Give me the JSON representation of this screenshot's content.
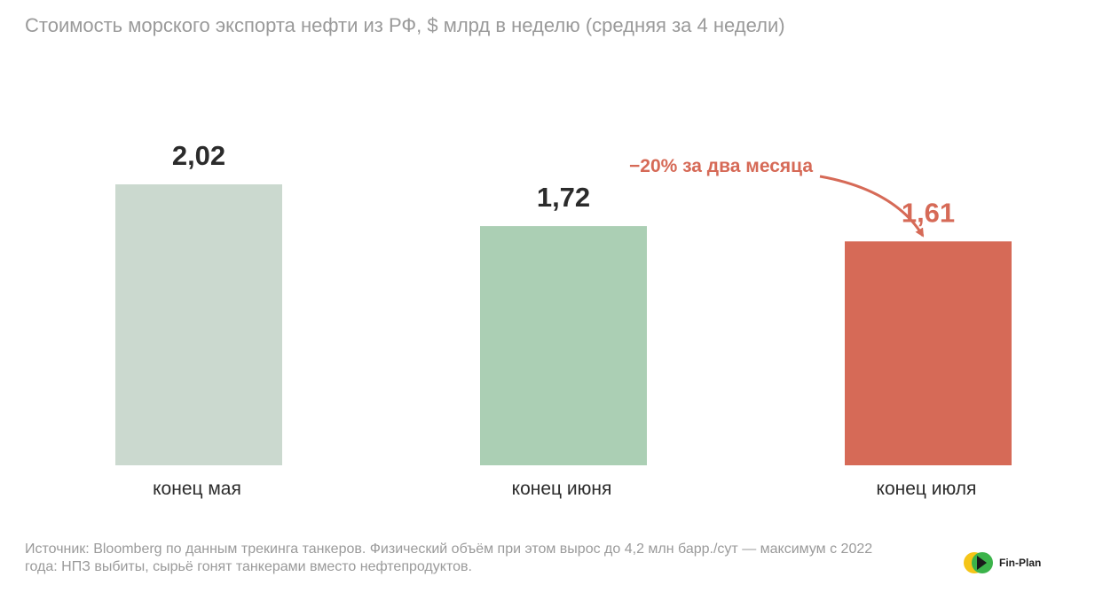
{
  "title": "Стоимость морского экспорта нефти из РФ, $ млрд в неделю (средняя за 4 недели)",
  "chart_data": {
    "type": "bar",
    "categories": [
      "конец мая",
      "конец июня",
      "конец июля"
    ],
    "values": [
      2.02,
      1.72,
      1.61
    ],
    "value_labels": [
      "2,02",
      "1,72",
      "1,61"
    ],
    "colors": [
      "#cbd9cf",
      "#abcfb4",
      "#d66a57"
    ],
    "highlight_color": "#d66a57",
    "ylim": [
      0,
      2.02
    ],
    "grid": false,
    "annotation": {
      "text": "−20% за два месяца",
      "target_category": "конец июля"
    }
  },
  "source": "Источник: Bloomberg по данным трекинга танкеров. Физический объём при этом вырос до 4,2 млн барр./сут — максимум с 2022 года: НПЗ выбиты, сырьё гонят танкерами вместо нефтепродуктов.",
  "logo": {
    "text": "Fin-Plan",
    "colors": [
      "#f5c518",
      "#3bb34a",
      "#1a1a1a"
    ]
  }
}
